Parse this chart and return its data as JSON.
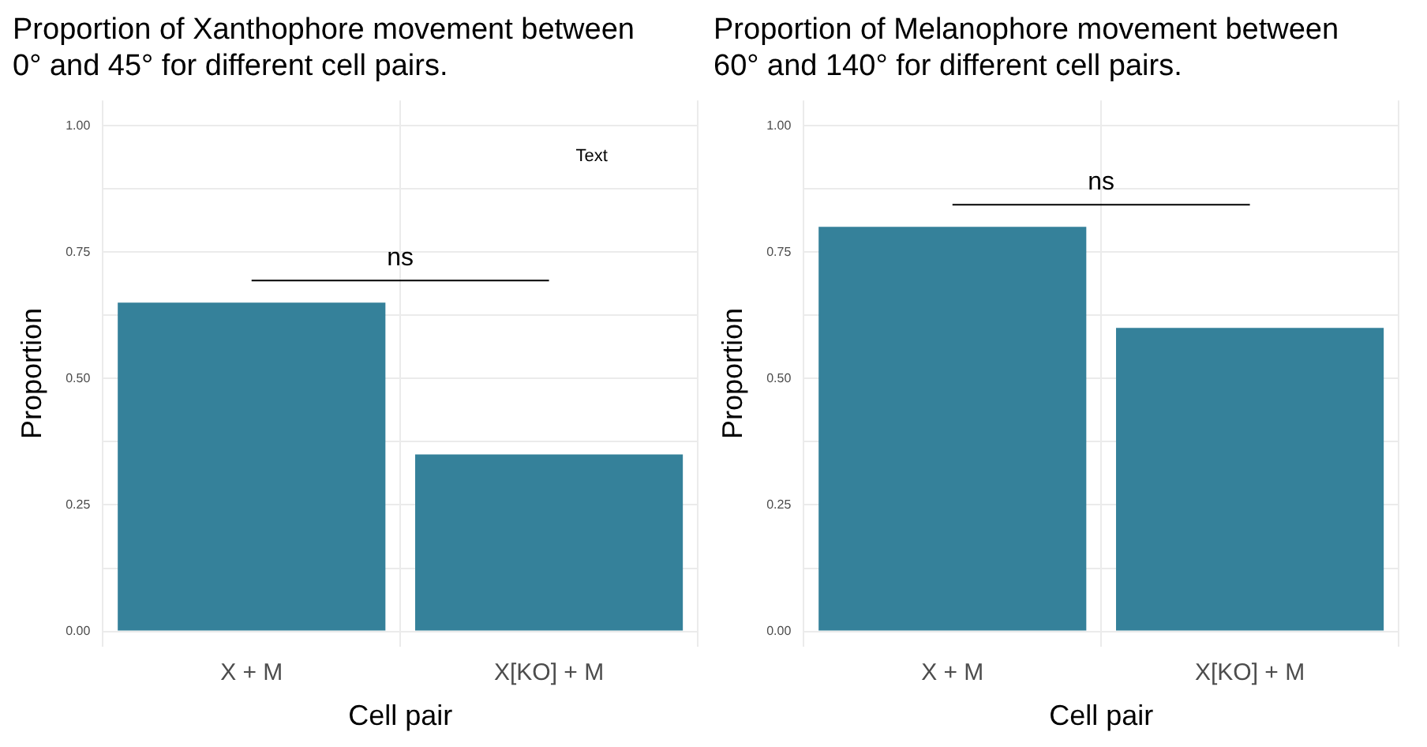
{
  "chart_data": [
    {
      "type": "bar",
      "title": "Proportion of Xanthophore movement between\n0° and 45° for different cell pairs.",
      "xlabel": "Cell pair",
      "ylabel": "Proportion",
      "categories": [
        "X + M",
        "X[KO] + M"
      ],
      "values": [
        0.65,
        0.35
      ],
      "color": "#35819a",
      "ylim": [
        -0.03,
        1.05
      ],
      "yticks": [
        {
          "value": 0,
          "label": "0.00"
        },
        {
          "value": 0.125,
          "label": null
        },
        {
          "value": 0.25,
          "label": "0.25"
        },
        {
          "value": 0.375,
          "label": null
        },
        {
          "value": 0.5,
          "label": "0.50"
        },
        {
          "value": 0.625,
          "label": null
        },
        {
          "value": 0.75,
          "label": "0.75"
        },
        {
          "value": 0.875,
          "label": null
        },
        {
          "value": 1,
          "label": "1.00"
        }
      ],
      "grid": true,
      "legend": false,
      "annotations": [
        "ns",
        "Text"
      ]
    },
    {
      "type": "bar",
      "title": "Proportion of Melanophore movement between\n60° and 140° for different cell pairs.",
      "xlabel": "Cell pair",
      "ylabel": "Proportion",
      "categories": [
        "X + M",
        "X[KO] + M"
      ],
      "values": [
        0.8,
        0.6
      ],
      "color": "#35819a",
      "ylim": [
        -0.03,
        1.05
      ],
      "yticks": [
        {
          "value": 0,
          "label": "0.00"
        },
        {
          "value": 0.125,
          "label": null
        },
        {
          "value": 0.25,
          "label": "0.25"
        },
        {
          "value": 0.375,
          "label": null
        },
        {
          "value": 0.5,
          "label": "0.50"
        },
        {
          "value": 0.625,
          "label": null
        },
        {
          "value": 0.75,
          "label": "0.75"
        },
        {
          "value": 0.875,
          "label": null
        },
        {
          "value": 1,
          "label": "1.00"
        }
      ],
      "grid": true,
      "legend": false,
      "annotations": [
        "ns"
      ]
    }
  ]
}
